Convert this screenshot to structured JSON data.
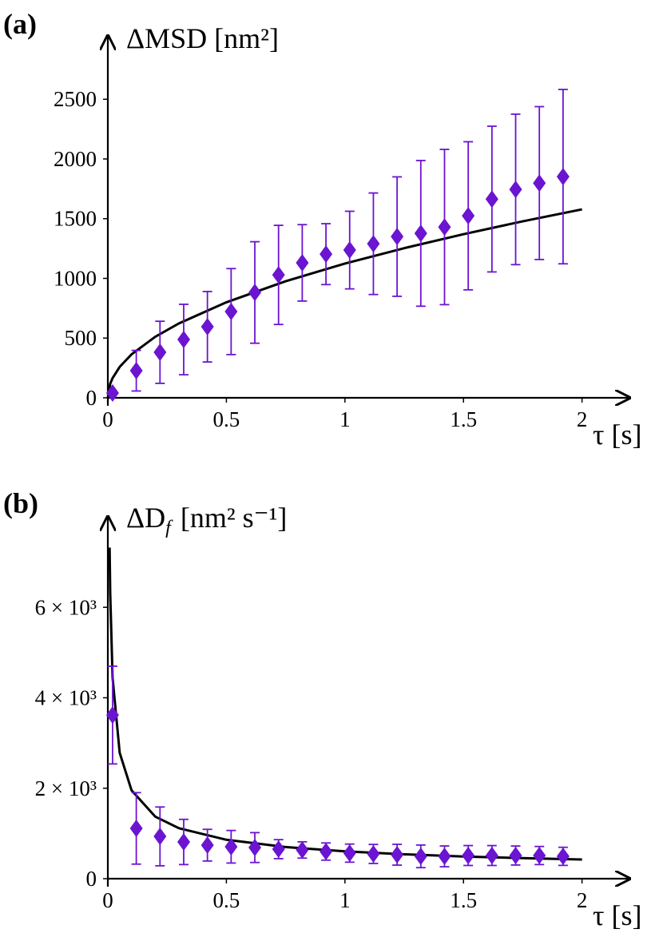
{
  "chart_data": [
    {
      "type": "scatter",
      "panel": "(a)",
      "y_label": "ΔMSD [nm²]",
      "x_label": "τ [s]",
      "xlim": [
        0,
        2.2
      ],
      "ylim": [
        0,
        3030
      ],
      "xticks": [
        0,
        0.5,
        1,
        1.5,
        2
      ],
      "yticks": [
        0,
        500,
        1000,
        1500,
        2000,
        2500
      ],
      "points": {
        "color": "#6b14d1",
        "x": [
          0.02,
          0.12,
          0.22,
          0.32,
          0.42,
          0.52,
          0.62,
          0.72,
          0.82,
          0.92,
          1.02,
          1.12,
          1.22,
          1.32,
          1.42,
          1.52,
          1.62,
          1.72,
          1.82,
          1.92
        ],
        "values": [
          40,
          227,
          381,
          488,
          595,
          722,
          882,
          1029,
          1130,
          1203,
          1237,
          1290,
          1350,
          1377,
          1430,
          1524,
          1664,
          1745,
          1798,
          1852
        ],
        "errors": [
          10,
          170,
          260,
          295,
          295,
          360,
          425,
          415,
          320,
          255,
          325,
          425,
          500,
          610,
          650,
          620,
          610,
          630,
          640,
          730
        ]
      },
      "fit": {
        "color": "#000000",
        "x": [
          0,
          0.01,
          0.02,
          0.05,
          0.1,
          0.2,
          0.3,
          0.5,
          0.75,
          1,
          1.25,
          1.5,
          1.75,
          2
        ],
        "values": [
          0,
          118,
          165,
          259,
          364,
          511,
          623,
          800,
          976,
          1124,
          1253,
          1370,
          1478,
          1578
        ]
      }
    },
    {
      "type": "scatter",
      "panel": "(b)",
      "y_label": "ΔD",
      "y_label_subscript": "f",
      "y_label_unit": "[nm² s⁻¹]",
      "x_label": "τ [s]",
      "xlim": [
        0,
        2.2
      ],
      "ylim": [
        0,
        8000
      ],
      "xticks": [
        0,
        0.5,
        1,
        1.5,
        2
      ],
      "yticks": [
        0,
        {
          "value": 2000,
          "label": "2 × 10³"
        },
        {
          "value": 4000,
          "label": "4 × 10³"
        },
        {
          "value": 6000,
          "label": "6 × 10³"
        }
      ],
      "points": {
        "color": "#6b14d1",
        "x": [
          0.02,
          0.12,
          0.22,
          0.32,
          0.42,
          0.52,
          0.62,
          0.72,
          0.82,
          0.92,
          1.02,
          1.12,
          1.22,
          1.32,
          1.42,
          1.52,
          1.62,
          1.72,
          1.82,
          1.92
        ],
        "values": [
          3617,
          1112,
          935,
          812,
          741,
          706,
          688,
          653,
          635,
          600,
          565,
          547,
          530,
          494,
          494,
          512,
          512,
          512,
          512,
          494
        ],
        "errors": [
          1080,
          790,
          650,
          500,
          350,
          360,
          330,
          210,
          180,
          190,
          200,
          210,
          230,
          250,
          230,
          220,
          220,
          210,
          200,
          200
        ]
      },
      "fit": {
        "color": "#000000",
        "x": [
          0.0075,
          0.01,
          0.02,
          0.05,
          0.1,
          0.2,
          0.3,
          0.5,
          0.75,
          1,
          1.25,
          1.5,
          1.75,
          2
        ],
        "values": [
          7320,
          6320,
          4440,
          2782,
          1954,
          1372,
          1116,
          860,
          699,
          604,
          539,
          491,
          454,
          424
        ]
      }
    }
  ]
}
